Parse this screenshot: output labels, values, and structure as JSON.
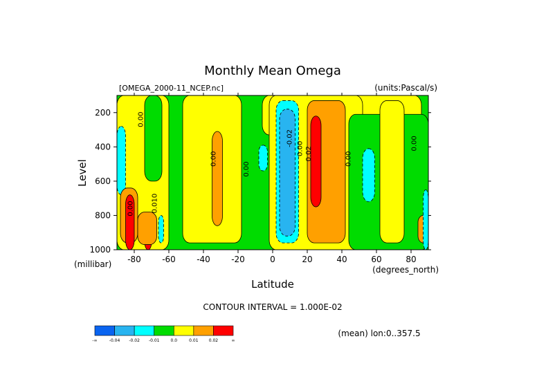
{
  "title": "Monthly Mean Omega",
  "dataset_label": "[OMEGA_2000-11_NCEP.nc]",
  "units_label": "(units:Pascal/s)",
  "contour_interval_label": "CONTOUR INTERVAL = 1.000E-02",
  "mean_label": "(mean) lon:0..357.5",
  "colors": {
    "c_lt_m04": "#0a64f0",
    "c_m04_m02": "#28b4f0",
    "c_m02_m01": "#00ffff",
    "c_m01_0": "#00dc00",
    "c_0_01": "#ffff00",
    "c_01_02": "#ffa000",
    "c_gt_02": "#ff0000"
  },
  "chart_data": {
    "type": "contour",
    "title": "Monthly Mean Omega",
    "variable": "omega",
    "units": "Pascal/s",
    "xlabel": "Latitude",
    "x_unit_label": "(degrees_north)",
    "ylabel": "Level",
    "y_unit_label": "(millibar)",
    "xlim": [
      -90,
      90
    ],
    "ylim": [
      1000,
      100
    ],
    "x_ticks": [
      -80,
      -60,
      -40,
      -20,
      0,
      20,
      40,
      60,
      80
    ],
    "x_tick_labels": [
      "-80",
      "-60",
      "-40",
      "-20",
      "0",
      "20",
      "40",
      "60",
      "80"
    ],
    "y_ticks": [
      200,
      400,
      600,
      800,
      1000
    ],
    "y_tick_labels": [
      "200",
      "400",
      "600",
      "800",
      "1000"
    ],
    "contour_interval": 0.01,
    "colorbar": {
      "boundary_labels": [
        "-∞",
        "-0.04",
        "-0.02",
        "-0.01",
        "0.0",
        "0.01",
        "0.02",
        "∞"
      ],
      "bin_colors": [
        "#0a64f0",
        "#28b4f0",
        "#00ffff",
        "#00dc00",
        "#ffff00",
        "#ffa000",
        "#ff0000"
      ]
    },
    "contour_labels": [
      {
        "text": "0.00",
        "lat": -75,
        "level": 240
      },
      {
        "text": "0.00",
        "lat": -33,
        "level": 470
      },
      {
        "text": "0.00",
        "lat": -14,
        "level": 530
      },
      {
        "text": "0.00",
        "lat": -81,
        "level": 760
      },
      {
        "text": "0.010",
        "lat": -67,
        "level": 730
      },
      {
        "text": "-0.02",
        "lat": 11,
        "level": 350
      },
      {
        "text": "0.00",
        "lat": 17,
        "level": 410
      },
      {
        "text": "0.02",
        "lat": 22,
        "level": 440
      },
      {
        "text": "0.00",
        "lat": 45,
        "level": 470
      },
      {
        "text": "0.00",
        "lat": 83,
        "level": 380
      }
    ],
    "regions": [
      {
        "bin": 3,
        "lat": [
          -90,
          90
        ],
        "level": [
          100,
          1000
        ]
      },
      {
        "bin": 4,
        "lat": [
          -90,
          -60
        ],
        "level": [
          100,
          1000
        ]
      },
      {
        "bin": 3,
        "lat": [
          -74,
          -64
        ],
        "level": [
          100,
          600
        ]
      },
      {
        "bin": 4,
        "lat": [
          -52,
          -18
        ],
        "level": [
          100,
          960
        ]
      },
      {
        "bin": 5,
        "lat": [
          -35,
          -29
        ],
        "level": [
          310,
          860
        ]
      },
      {
        "bin": 4,
        "lat": [
          -6,
          86
        ],
        "level": [
          100,
          330
        ]
      },
      {
        "bin": 4,
        "lat": [
          -2,
          52
        ],
        "level": [
          100,
          1000
        ]
      },
      {
        "bin": 3,
        "lat": [
          44,
          90
        ],
        "level": [
          210,
          1000
        ]
      },
      {
        "bin": 2,
        "lat": [
          2,
          15
        ],
        "level": [
          130,
          960
        ]
      },
      {
        "bin": 1,
        "lat": [
          4,
          13
        ],
        "level": [
          180,
          920
        ]
      },
      {
        "bin": 5,
        "lat": [
          20,
          42
        ],
        "level": [
          130,
          960
        ]
      },
      {
        "bin": 6,
        "lat": [
          22,
          28
        ],
        "level": [
          220,
          750
        ]
      },
      {
        "bin": 4,
        "lat": [
          62,
          76
        ],
        "level": [
          130,
          960
        ]
      },
      {
        "bin": 2,
        "lat": [
          52,
          59
        ],
        "level": [
          410,
          720
        ]
      },
      {
        "bin": 2,
        "lat": [
          -8,
          -3
        ],
        "level": [
          390,
          540
        ]
      },
      {
        "bin": 2,
        "lat": [
          -90,
          -85
        ],
        "level": [
          280,
          680
        ]
      },
      {
        "bin": 5,
        "lat": [
          -88,
          -78
        ],
        "level": [
          640,
          960
        ]
      },
      {
        "bin": 6,
        "lat": [
          -85,
          -80
        ],
        "level": [
          680,
          1000
        ]
      },
      {
        "bin": 6,
        "lat": [
          -74,
          -70
        ],
        "level": [
          820,
          1000
        ]
      },
      {
        "bin": 5,
        "lat": [
          -78,
          -67
        ],
        "level": [
          780,
          970
        ]
      },
      {
        "bin": 2,
        "lat": [
          -66,
          -63
        ],
        "level": [
          800,
          960
        ]
      },
      {
        "bin": 5,
        "lat": [
          84,
          90
        ],
        "level": [
          800,
          960
        ]
      },
      {
        "bin": 2,
        "lat": [
          87,
          90
        ],
        "level": [
          650,
          1000
        ]
      }
    ]
  }
}
